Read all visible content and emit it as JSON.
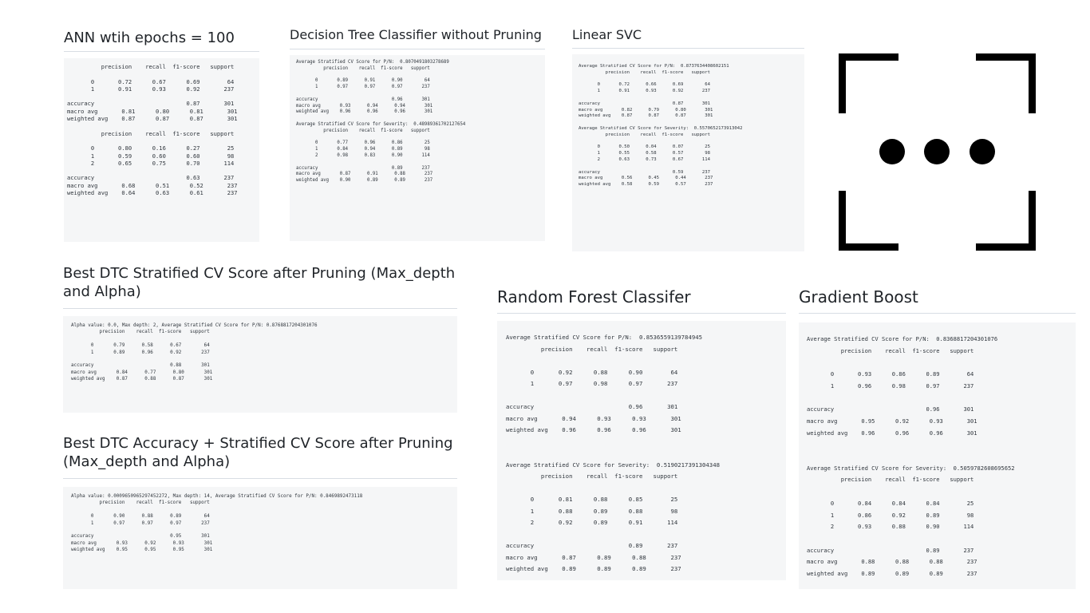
{
  "panels": {
    "ann": {
      "title": "ANN wtih epochs = 100",
      "report": "          precision    recall  f1-score   support\n\n       0       0.72      0.67      0.69        64\n       1       0.91      0.93      0.92       237\n\naccuracy                           0.87       301\nmacro avg       0.81      0.80      0.81       301\nweighted avg    0.87      0.87      0.87       301\n\n          precision    recall  f1-score   support\n\n       0       0.80      0.16      0.27        25\n       1       0.59      0.60      0.60        98\n       2       0.65      0.75      0.70       114\n\naccuracy                           0.63       237\nmacro avg       0.68      0.51      0.52       237\nweighted avg    0.64      0.63      0.61       237"
    },
    "dtc": {
      "title": "Decision Tree Classifier without Pruning",
      "report": "Average Stratified CV Score for P/N:  0.8070491803278689\n          precision    recall  f1-score   support\n\n       0       0.89      0.91      0.90        64\n       1       0.97      0.97      0.97       237\n\naccuracy                           0.96       301\nmacro avg       0.93      0.94      0.94       301\nweighted avg    0.96      0.96      0.96       301\n\nAverage Stratified CV Score for Severity:  0.48989361702127654\n          precision    recall  f1-score   support\n\n       0       0.77      0.96      0.86        25\n       1       0.84      0.94      0.89        98\n       2       0.98      0.83      0.90       114\n\naccuracy                           0.89       237\nmacro avg       0.87      0.91      0.88       237\nweighted avg    0.90      0.89      0.89       237"
    },
    "svc": {
      "title": "Linear SVC",
      "report": "Average Stratified CV Score for P/N:  0.8737634408602151\n          precision    recall  f1-score   support\n\n       0       0.72      0.66      0.69        64\n       1       0.91      0.93      0.92       237\n\naccuracy                           0.87       301\nmacro avg       0.82      0.79      0.80       301\nweighted avg    0.87      0.87      0.87       301\n\nAverage Stratified CV Score for Severity:  0.5570652173913042\n          precision    recall  f1-score   support\n\n       0       0.50      0.04      0.07        25\n       1       0.55      0.58      0.57        98\n       2       0.63      0.73      0.67       114\n\naccuracy                           0.59       237\nmacro avg       0.56      0.45      0.44       237\nweighted avg    0.58      0.59      0.57       237"
    },
    "best_dtc": {
      "title": "Best DTC Stratified CV Score after Pruning (Max_depth and Alpha)",
      "report": "Alpha value: 0.0, Max depth: 2, Average Stratified CV Score for P/N: 0.8768817204301076\n          precision    recall  f1-score   support\n\n       0       0.79      0.58      0.67        64\n       1       0.89      0.96      0.92       237\n\naccuracy                           0.88       301\nmacro avg       0.84      0.77      0.80       301\nweighted avg    0.87      0.88      0.87       301"
    },
    "best_dtc_acc": {
      "title": "Best DTC Accuracy + Stratified CV Score after Pruning (Max_depth and Alpha)",
      "report": "Alpha value: 0.0009650965297452272, Max depth: 14, Average Stratified CV Score for P/N: 0.8469892473118\n          precision    recall  f1-score   support\n\n       0       0.90      0.88      0.89        64\n       1       0.97      0.97      0.97       237\n\naccuracy                           0.95       301\nmacro avg       0.93      0.92      0.93       301\nweighted avg    0.95      0.95      0.95       301"
    },
    "rf": {
      "title": "Random Forest Classifer",
      "report": "Average Stratified CV Score for P/N:  0.8536559139784945\n          precision    recall  f1-score   support\n\n       0       0.92      0.88      0.90        64\n       1       0.97      0.98      0.97       237\n\naccuracy                           0.96       301\nmacro avg       0.94      0.93      0.93       301\nweighted avg    0.96      0.96      0.96       301\n\n\nAverage Stratified CV Score for Severity:  0.5190217391304348\n          precision    recall  f1-score   support\n\n       0       0.81      0.88      0.85        25\n       1       0.88      0.89      0.88        98\n       2       0.92      0.89      0.91       114\n\naccuracy                           0.89       237\nmacro avg       0.87      0.89      0.88       237\nweighted avg    0.89      0.89      0.89       237"
    },
    "gb": {
      "title": "Gradient Boost",
      "report": "Average Stratified CV Score for P/N:  0.8368817204301076\n          precision    recall  f1-score   support\n\n       0       0.93      0.86      0.89        64\n       1       0.96      0.98      0.97       237\n\naccuracy                           0.96       301\nmacro avg       0.95      0.92      0.93       301\nweighted avg    0.96      0.96      0.96       301\n\n\nAverage Stratified CV Score for Severity:  0.5059782608695652\n          precision    recall  f1-score   support\n\n       0       0.84      0.84      0.84        25\n       1       0.86      0.92      0.89        98\n       2       0.93      0.88      0.90       114\n\naccuracy                           0.89       237\nmacro avg       0.88      0.88      0.88       237\nweighted avg    0.89      0.89      0.89       237"
    }
  },
  "icons": {
    "more": "more-icon"
  }
}
